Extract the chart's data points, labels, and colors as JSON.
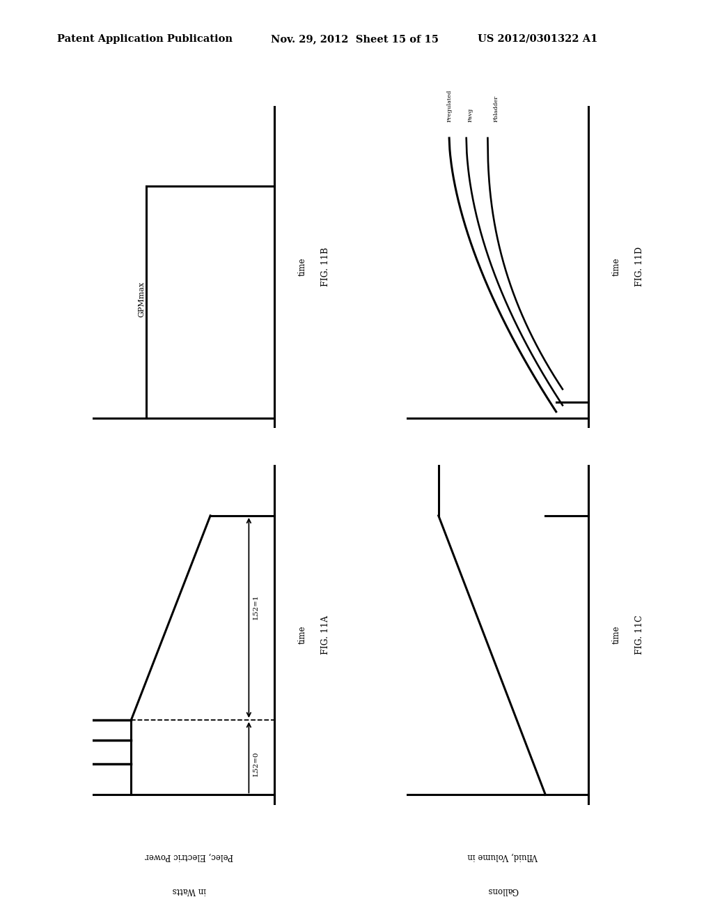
{
  "header_left": "Patent Application Publication",
  "header_mid": "Nov. 29, 2012  Sheet 15 of 15",
  "header_right": "US 2012/0301322 A1",
  "background_color": "#ffffff",
  "line_color": "#000000",
  "lw": 2.2
}
